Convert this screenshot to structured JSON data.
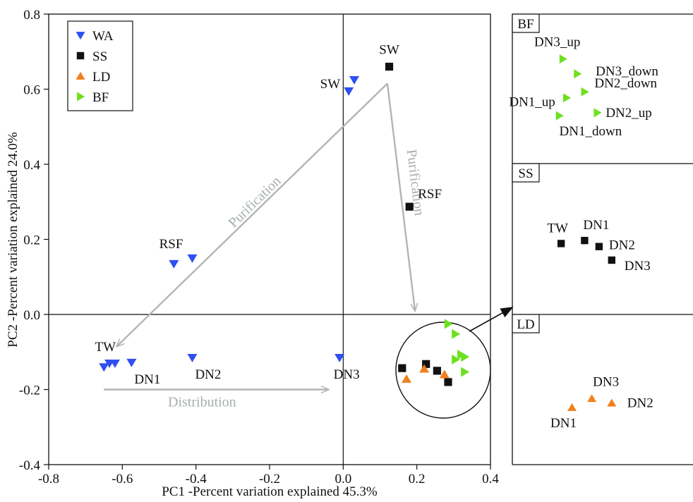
{
  "chart_data": [
    {
      "type": "scatter",
      "xlabel": "PC1 -Percent variation explained 45.3%",
      "ylabel": "PC2 -Percent variation explained 24.0%",
      "xlim": [
        -0.8,
        0.4
      ],
      "ylim": [
        -0.4,
        0.8
      ],
      "xticks": [
        "-0.8",
        "-0.6",
        "-0.4",
        "-0.2",
        "0.0",
        "0.2",
        "0.4"
      ],
      "yticks": [
        "-0.4",
        "-0.2",
        "0.0",
        "0.2",
        "0.4",
        "0.6",
        "0.8"
      ],
      "legend": {
        "placement": "top-left"
      },
      "series": [
        {
          "name": "WA",
          "marker": "triangle-down",
          "color": "#2f4ff0",
          "points": [
            {
              "x": 0.015,
              "y": 0.595
            },
            {
              "x": 0.03,
              "y": 0.625
            },
            {
              "x": -0.46,
              "y": 0.135
            },
            {
              "x": -0.41,
              "y": 0.15
            },
            {
              "x": -0.65,
              "y": -0.14
            },
            {
              "x": -0.635,
              "y": -0.13
            },
            {
              "x": -0.62,
              "y": -0.13
            },
            {
              "x": -0.575,
              "y": -0.128
            },
            {
              "x": -0.41,
              "y": -0.115
            },
            {
              "x": -0.01,
              "y": -0.115
            }
          ]
        },
        {
          "name": "SS",
          "marker": "square",
          "color": "#111111",
          "points": [
            {
              "x": 0.125,
              "y": 0.66
            },
            {
              "x": 0.18,
              "y": 0.287
            },
            {
              "x": 0.16,
              "y": -0.143
            },
            {
              "x": 0.225,
              "y": -0.132
            },
            {
              "x": 0.255,
              "y": -0.15
            },
            {
              "x": 0.285,
              "y": -0.18
            }
          ]
        },
        {
          "name": "LD",
          "marker": "triangle-up",
          "color": "#f0801e",
          "points": [
            {
              "x": 0.172,
              "y": -0.172
            },
            {
              "x": 0.22,
              "y": -0.145
            },
            {
              "x": 0.275,
              "y": -0.16
            }
          ]
        },
        {
          "name": "BF",
          "marker": "triangle-right",
          "color": "#6de020",
          "points": [
            {
              "x": 0.285,
              "y": -0.025
            },
            {
              "x": 0.305,
              "y": -0.052
            },
            {
              "x": 0.32,
              "y": -0.107
            },
            {
              "x": 0.33,
              "y": -0.113
            },
            {
              "x": 0.305,
              "y": -0.12
            },
            {
              "x": 0.33,
              "y": -0.153
            }
          ]
        }
      ],
      "annotations": [
        {
          "text": "SW",
          "x": 0.125,
          "y": 0.66
        },
        {
          "text": "SW",
          "x": 0.015,
          "y": 0.595
        },
        {
          "text": "RSF",
          "x": 0.18,
          "y": 0.287
        },
        {
          "text": "RSF",
          "x": -0.435,
          "y": 0.15
        },
        {
          "text": "TW",
          "x": -0.65,
          "y": -0.13
        },
        {
          "text": "DN1",
          "x": -0.575,
          "y": -0.128
        },
        {
          "text": "DN2",
          "x": -0.41,
          "y": -0.115
        },
        {
          "text": "DN3",
          "x": -0.01,
          "y": -0.115
        }
      ],
      "arrows": [
        {
          "label": "Purification",
          "from": [
            0.12,
            0.615
          ],
          "to": [
            -0.615,
            -0.085
          ]
        },
        {
          "label": "Purification",
          "from": [
            0.12,
            0.615
          ],
          "to": [
            0.195,
            0.01
          ]
        },
        {
          "label": "Distribution",
          "from": [
            -0.65,
            -0.2
          ],
          "to": [
            -0.04,
            -0.2
          ]
        }
      ]
    },
    {
      "type": "scatter",
      "panel": "BF",
      "marker": "triangle-right",
      "color": "#6de020",
      "points": [
        {
          "label": "DN3_up",
          "x": 0.28,
          "y": 0.7
        },
        {
          "label": "DN3_down",
          "x": 0.36,
          "y": 0.6
        },
        {
          "label": "DN2_down",
          "x": 0.4,
          "y": 0.48
        },
        {
          "label": "DN2_up",
          "x": 0.47,
          "y": 0.34
        },
        {
          "label": "DN1_up",
          "x": 0.3,
          "y": 0.44
        },
        {
          "label": "DN1_down",
          "x": 0.26,
          "y": 0.32
        }
      ]
    },
    {
      "type": "scatter",
      "panel": "SS",
      "marker": "square",
      "color": "#111111",
      "points": [
        {
          "label": "TW",
          "x": 0.27,
          "y": 0.47
        },
        {
          "label": "DN1",
          "x": 0.4,
          "y": 0.49
        },
        {
          "label": "DN2",
          "x": 0.48,
          "y": 0.45
        },
        {
          "label": "DN3",
          "x": 0.55,
          "y": 0.36
        }
      ]
    },
    {
      "type": "scatter",
      "panel": "LD",
      "marker": "triangle-up",
      "color": "#f0801e",
      "points": [
        {
          "label": "DN1",
          "x": 0.33,
          "y": 0.38
        },
        {
          "label": "DN3",
          "x": 0.44,
          "y": 0.44
        },
        {
          "label": "DN2",
          "x": 0.55,
          "y": 0.41
        }
      ]
    }
  ]
}
